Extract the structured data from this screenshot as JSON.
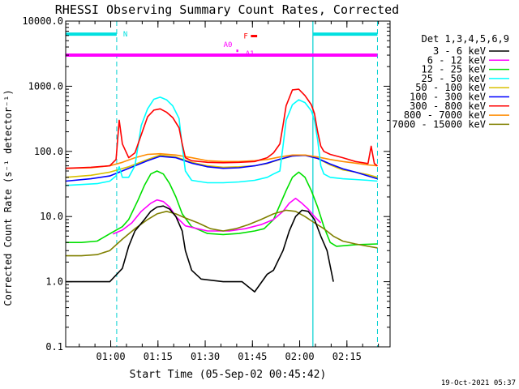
{
  "chart_data": {
    "type": "line",
    "title": "RHESSI Observing Summary Count Rates, Corrected",
    "xlabel": "Start Time (05-Sep-02 00:45:42)",
    "ylabel": "Corrected Count Rate (s⁻¹ detector⁻¹)",
    "x_units": "minutes after 00:45:42",
    "xlim": [
      0,
      103
    ],
    "y_scale": "log",
    "ylim": [
      0.1,
      10000
    ],
    "xticks": [
      {
        "label": "01:00",
        "value": 14.3
      },
      {
        "label": "01:15",
        "value": 29.3
      },
      {
        "label": "01:30",
        "value": 44.3
      },
      {
        "label": "01:45",
        "value": 59.3
      },
      {
        "label": "02:00",
        "value": 74.3
      },
      {
        "label": "02:15",
        "value": 89.3
      }
    ],
    "yticks": [
      {
        "label": "0.1",
        "value": 0.1
      },
      {
        "label": "1.0",
        "value": 1
      },
      {
        "label": "10.0",
        "value": 10
      },
      {
        "label": "100.0",
        "value": 100
      },
      {
        "label": "1000.0",
        "value": 1000
      },
      {
        "label": "10000.0",
        "value": 10000
      }
    ],
    "legend_title": "Det 1,3,4,5,6,9",
    "legend_position": "right-outside",
    "series": [
      {
        "name": "3 - 6 keV",
        "color": "#000000",
        "points": [
          [
            0,
            1.0
          ],
          [
            14,
            1.0
          ],
          [
            18,
            1.6
          ],
          [
            20,
            3.5
          ],
          [
            22,
            6
          ],
          [
            25,
            9
          ],
          [
            27,
            12
          ],
          [
            29,
            14
          ],
          [
            31,
            14.5
          ],
          [
            33,
            13
          ],
          [
            35,
            10
          ],
          [
            37,
            6
          ],
          [
            38,
            3
          ],
          [
            40,
            1.5
          ],
          [
            43,
            1.1
          ],
          [
            50,
            1.0
          ],
          [
            56,
            1.0
          ],
          [
            60,
            0.7
          ],
          [
            64,
            1.3
          ],
          [
            66,
            1.5
          ],
          [
            69,
            3
          ],
          [
            71,
            6
          ],
          [
            73,
            10
          ],
          [
            75,
            12.5
          ],
          [
            77,
            12
          ],
          [
            79,
            9
          ],
          [
            81,
            5
          ],
          [
            83,
            3
          ],
          [
            85,
            1.0
          ]
        ]
      },
      {
        "name": "6 - 12 keV",
        "color": "#ff00ff",
        "points": [
          [
            15,
            5.4
          ],
          [
            18,
            6.2
          ],
          [
            21,
            8
          ],
          [
            24,
            12
          ],
          [
            27,
            16
          ],
          [
            29,
            18
          ],
          [
            31,
            17
          ],
          [
            33,
            14
          ],
          [
            35,
            10
          ],
          [
            38,
            7.2
          ],
          [
            45,
            6.0
          ],
          [
            52,
            6.0
          ],
          [
            57,
            6.5
          ],
          [
            62,
            7.5
          ],
          [
            66,
            9
          ],
          [
            69,
            12
          ],
          [
            71,
            16
          ],
          [
            73,
            19
          ],
          [
            75,
            16
          ],
          [
            77,
            13
          ],
          [
            79,
            10
          ],
          [
            81,
            8
          ]
        ]
      },
      {
        "name": "12 - 25 keV",
        "color": "#00e000",
        "points": [
          [
            0,
            4
          ],
          [
            5,
            4
          ],
          [
            10,
            4.2
          ],
          [
            15,
            5.8
          ],
          [
            18,
            7
          ],
          [
            20,
            9
          ],
          [
            23,
            18
          ],
          [
            25,
            30
          ],
          [
            27,
            45
          ],
          [
            29,
            50
          ],
          [
            31,
            45
          ],
          [
            33,
            32
          ],
          [
            35,
            20
          ],
          [
            37,
            11
          ],
          [
            40,
            7
          ],
          [
            45,
            5.5
          ],
          [
            50,
            5.3
          ],
          [
            55,
            5.5
          ],
          [
            60,
            6
          ],
          [
            63,
            6.5
          ],
          [
            66,
            9
          ],
          [
            68,
            15
          ],
          [
            70,
            25
          ],
          [
            72,
            40
          ],
          [
            74,
            48
          ],
          [
            76,
            40
          ],
          [
            78,
            25
          ],
          [
            80,
            14
          ],
          [
            82,
            7
          ],
          [
            84,
            4
          ],
          [
            86,
            3.5
          ],
          [
            92,
            3.7
          ],
          [
            99,
            3.8
          ]
        ]
      },
      {
        "name": "25 - 50 keV",
        "color": "#00ffff",
        "points": [
          [
            0,
            30
          ],
          [
            5,
            31
          ],
          [
            10,
            32
          ],
          [
            14,
            35
          ],
          [
            16,
            42
          ],
          [
            17,
            58
          ],
          [
            18,
            40
          ],
          [
            20,
            40
          ],
          [
            22,
            60
          ],
          [
            24,
            250
          ],
          [
            26,
            450
          ],
          [
            28,
            630
          ],
          [
            30,
            680
          ],
          [
            32,
            620
          ],
          [
            34,
            500
          ],
          [
            36,
            320
          ],
          [
            37,
            120
          ],
          [
            38,
            50
          ],
          [
            40,
            36
          ],
          [
            45,
            33
          ],
          [
            50,
            33
          ],
          [
            55,
            34
          ],
          [
            60,
            36
          ],
          [
            64,
            40
          ],
          [
            66,
            45
          ],
          [
            68,
            50
          ],
          [
            69,
            120
          ],
          [
            70,
            300
          ],
          [
            72,
            520
          ],
          [
            74,
            620
          ],
          [
            76,
            560
          ],
          [
            78,
            420
          ],
          [
            79,
            300
          ],
          [
            80,
            150
          ],
          [
            81,
            60
          ],
          [
            82,
            45
          ],
          [
            84,
            40
          ],
          [
            88,
            38
          ],
          [
            92,
            37
          ],
          [
            96,
            36
          ],
          [
            99,
            35
          ]
        ]
      },
      {
        "name": "50 - 100 keV",
        "color": "#d8c000",
        "points": [
          [
            0,
            40
          ],
          [
            8,
            43
          ],
          [
            14,
            48
          ],
          [
            20,
            58
          ],
          [
            26,
            75
          ],
          [
            30,
            88
          ],
          [
            35,
            82
          ],
          [
            40,
            68
          ],
          [
            45,
            60
          ],
          [
            50,
            57
          ],
          [
            55,
            58
          ],
          [
            60,
            60
          ],
          [
            64,
            65
          ],
          [
            68,
            75
          ],
          [
            72,
            85
          ],
          [
            76,
            88
          ],
          [
            80,
            78
          ],
          [
            84,
            62
          ],
          [
            88,
            52
          ],
          [
            92,
            48
          ],
          [
            96,
            44
          ],
          [
            99,
            40
          ]
        ]
      },
      {
        "name": "100 - 300 keV",
        "color": "#0000ff",
        "points": [
          [
            0,
            35
          ],
          [
            8,
            38
          ],
          [
            14,
            42
          ],
          [
            20,
            55
          ],
          [
            26,
            72
          ],
          [
            30,
            84
          ],
          [
            35,
            80
          ],
          [
            40,
            66
          ],
          [
            45,
            58
          ],
          [
            50,
            55
          ],
          [
            55,
            56
          ],
          [
            60,
            60
          ],
          [
            64,
            66
          ],
          [
            68,
            76
          ],
          [
            72,
            85
          ],
          [
            76,
            87
          ],
          [
            80,
            78
          ],
          [
            84,
            64
          ],
          [
            88,
            54
          ],
          [
            92,
            48
          ],
          [
            96,
            42
          ],
          [
            99,
            38
          ]
        ]
      },
      {
        "name": "300 - 800 keV",
        "color": "#ff0000",
        "points": [
          [
            0,
            55
          ],
          [
            8,
            57
          ],
          [
            14,
            60
          ],
          [
            16,
            75
          ],
          [
            17,
            300
          ],
          [
            18,
            130
          ],
          [
            20,
            80
          ],
          [
            22,
            95
          ],
          [
            24,
            180
          ],
          [
            26,
            340
          ],
          [
            28,
            430
          ],
          [
            30,
            450
          ],
          [
            32,
            400
          ],
          [
            34,
            330
          ],
          [
            36,
            230
          ],
          [
            37,
            130
          ],
          [
            38,
            80
          ],
          [
            40,
            72
          ],
          [
            45,
            68
          ],
          [
            50,
            67
          ],
          [
            55,
            68
          ],
          [
            60,
            70
          ],
          [
            64,
            80
          ],
          [
            66,
            95
          ],
          [
            68,
            130
          ],
          [
            69,
            250
          ],
          [
            70,
            500
          ],
          [
            72,
            880
          ],
          [
            74,
            900
          ],
          [
            76,
            720
          ],
          [
            78,
            520
          ],
          [
            79,
            380
          ],
          [
            80,
            200
          ],
          [
            81,
            120
          ],
          [
            82,
            100
          ],
          [
            84,
            90
          ],
          [
            88,
            80
          ],
          [
            92,
            70
          ],
          [
            96,
            65
          ],
          [
            97,
            120
          ],
          [
            98,
            65
          ],
          [
            99,
            60
          ]
        ]
      },
      {
        "name": "800 - 7000 keV",
        "color": "#ff8c00",
        "points": [
          [
            0,
            55
          ],
          [
            8,
            56
          ],
          [
            14,
            60
          ],
          [
            18,
            68
          ],
          [
            22,
            80
          ],
          [
            26,
            90
          ],
          [
            30,
            92
          ],
          [
            35,
            88
          ],
          [
            40,
            80
          ],
          [
            45,
            72
          ],
          [
            50,
            70
          ],
          [
            55,
            70
          ],
          [
            60,
            72
          ],
          [
            64,
            75
          ],
          [
            68,
            82
          ],
          [
            72,
            88
          ],
          [
            76,
            88
          ],
          [
            80,
            82
          ],
          [
            84,
            75
          ],
          [
            88,
            70
          ],
          [
            92,
            66
          ],
          [
            96,
            62
          ],
          [
            99,
            60
          ]
        ]
      },
      {
        "name": "7000 - 15000 keV",
        "color": "#808000",
        "points": [
          [
            0,
            2.5
          ],
          [
            5,
            2.5
          ],
          [
            10,
            2.6
          ],
          [
            14,
            3
          ],
          [
            18,
            4.5
          ],
          [
            22,
            6.5
          ],
          [
            26,
            9
          ],
          [
            29,
            11
          ],
          [
            32,
            12
          ],
          [
            35,
            11
          ],
          [
            38,
            9.5
          ],
          [
            42,
            8
          ],
          [
            46,
            6.5
          ],
          [
            50,
            6
          ],
          [
            54,
            6.5
          ],
          [
            58,
            7.5
          ],
          [
            62,
            9
          ],
          [
            66,
            11
          ],
          [
            70,
            12.5
          ],
          [
            73,
            12
          ],
          [
            76,
            10
          ],
          [
            79,
            8
          ],
          [
            82,
            6.5
          ],
          [
            85,
            5
          ],
          [
            88,
            4.2
          ],
          [
            92,
            3.8
          ],
          [
            96,
            3.5
          ],
          [
            99,
            3.3
          ]
        ]
      }
    ],
    "annotations": {
      "vertical_dashed_lines": [
        16.2,
        99
      ],
      "vertical_solid_lines": [
        78.5
      ],
      "top_bars": [
        {
          "label": "N",
          "color": "#00e0e0",
          "x_ranges": [
            [
              0,
              16.2
            ],
            [
              78.5,
              99
            ]
          ],
          "y": 6300
        },
        {
          "label": "",
          "color": "#ff00ff",
          "x_ranges": [
            [
              0,
              99
            ]
          ],
          "y": 3000
        }
      ],
      "flag_labels": [
        {
          "text": "F",
          "color": "#ff0000",
          "x": 57.2,
          "y": 5400
        },
        {
          "text": "A0",
          "color": "#ff00ff",
          "x": 51.5,
          "y": 4000
        },
        {
          "text": "A1",
          "color": "#ff00ff",
          "x": 58.5,
          "y": 2900
        }
      ]
    },
    "timestamp": "19-Oct-2021 05:37"
  }
}
